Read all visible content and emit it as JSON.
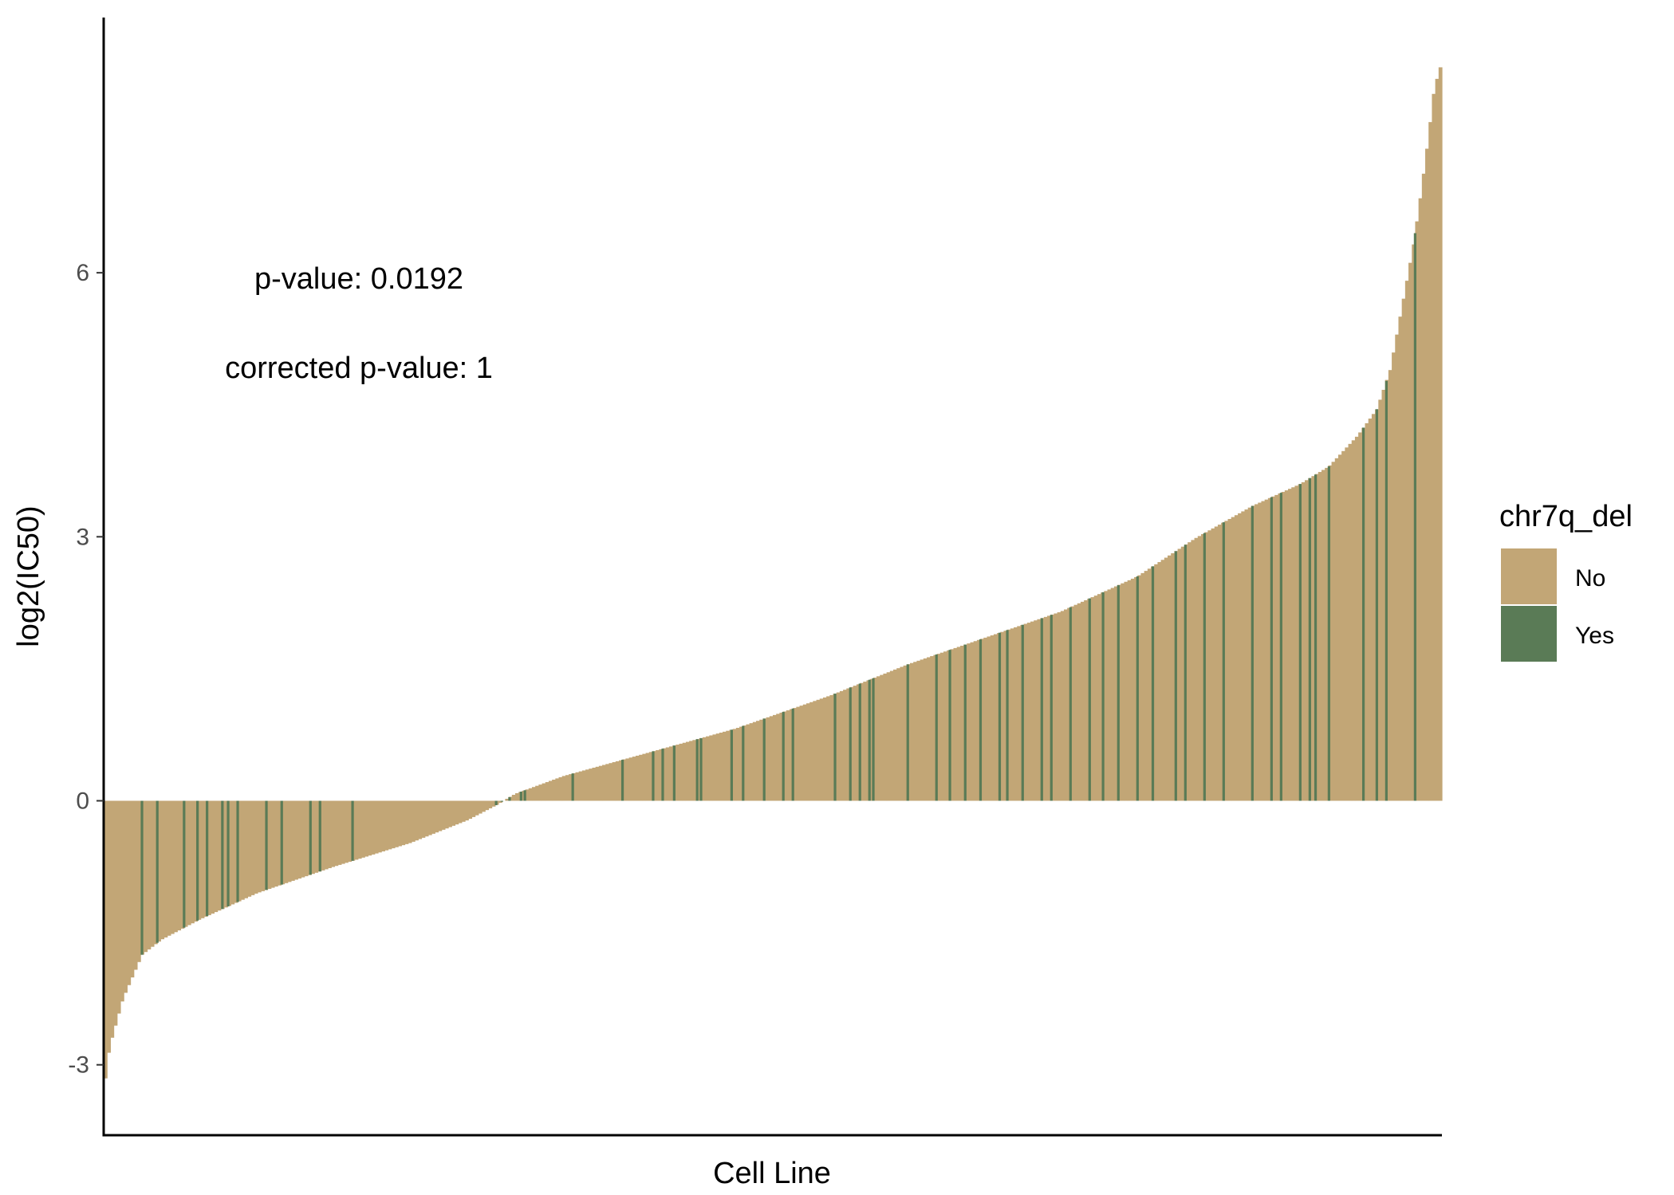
{
  "chart_data": {
    "type": "bar",
    "xlabel": "Cell Line",
    "ylabel": "log2(IC50)",
    "ylim": [
      -3.8,
      8.9
    ],
    "yticks": [
      -3,
      0,
      3,
      6
    ],
    "grid": false,
    "legend_position": "right",
    "annotations": [
      "p-value: 0.0192",
      "corrected p-value: 1"
    ],
    "legend": {
      "title": "chr7q_del",
      "entries": [
        {
          "label": "No",
          "color": "#c2a676"
        },
        {
          "label": "Yes",
          "color": "#5a7b56"
        }
      ]
    },
    "n_bars": 400,
    "curve": [
      [
        0,
        -3.3
      ],
      [
        3,
        -2.8
      ],
      [
        10,
        -2.25
      ],
      [
        20,
        -1.75
      ],
      [
        30,
        -1.58
      ],
      [
        50,
        -1.35
      ],
      [
        80,
        -1.05
      ],
      [
        120,
        -0.75
      ],
      [
        160,
        -0.48
      ],
      [
        190,
        -0.22
      ],
      [
        205,
        -0.05
      ],
      [
        215,
        0.08
      ],
      [
        240,
        0.28
      ],
      [
        280,
        0.52
      ],
      [
        330,
        0.82
      ],
      [
        380,
        1.2
      ],
      [
        420,
        1.55
      ],
      [
        460,
        1.85
      ],
      [
        500,
        2.15
      ],
      [
        540,
        2.55
      ],
      [
        570,
        2.98
      ],
      [
        600,
        3.35
      ],
      [
        625,
        3.6
      ],
      [
        640,
        3.8
      ],
      [
        655,
        4.15
      ],
      [
        665,
        4.45
      ],
      [
        672,
        4.9
      ],
      [
        678,
        5.6
      ],
      [
        684,
        6.3
      ],
      [
        688,
        6.9
      ],
      [
        692,
        7.55
      ],
      [
        695,
        8.1
      ],
      [
        699,
        8.4
      ]
    ],
    "series": [
      {
        "name": "Yes",
        "positions": [
          20,
          28,
          42,
          49,
          54,
          62,
          65,
          70,
          85,
          93,
          108,
          113,
          130,
          205,
          208,
          212,
          218,
          220,
          245,
          271,
          287,
          292,
          298,
          310,
          312,
          328,
          334,
          345,
          355,
          360,
          382,
          390,
          395,
          400,
          402,
          420,
          435,
          442,
          450,
          458,
          468,
          472,
          480,
          490,
          495,
          505,
          515,
          522,
          530,
          540,
          548,
          560,
          565,
          575,
          585,
          600,
          610,
          615,
          625,
          630,
          633,
          640,
          658,
          665,
          670,
          685
        ]
      }
    ]
  }
}
